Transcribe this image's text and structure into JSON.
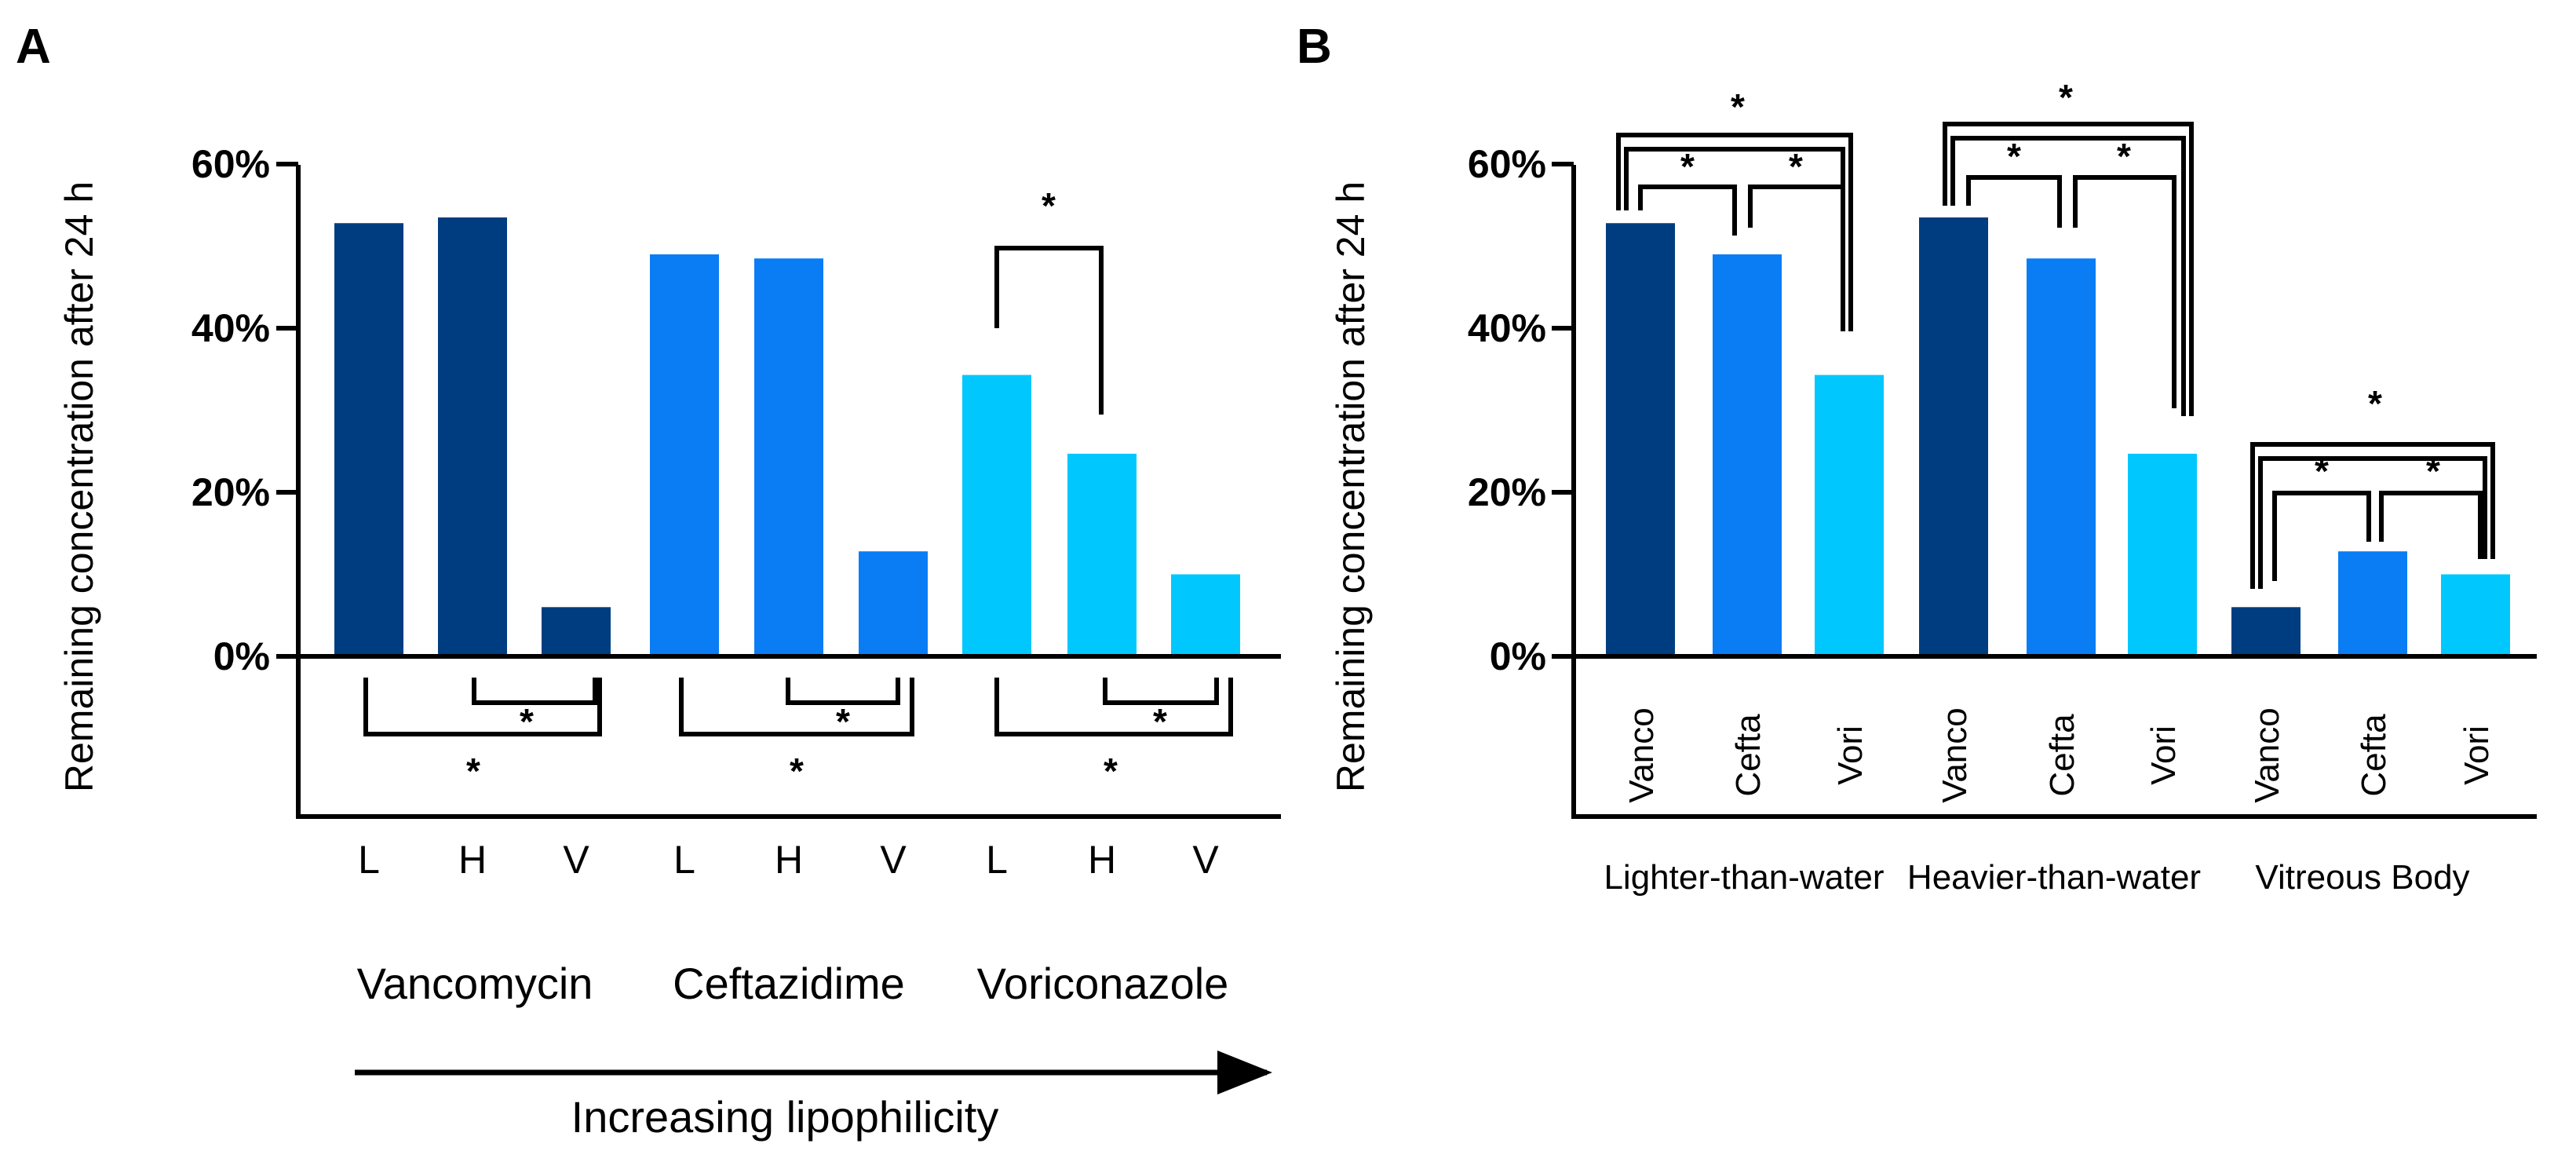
{
  "colors": {
    "vancomycin": "#003d80",
    "ceftazidime": "#0a7df5",
    "voriconazole": "#00c8ff",
    "ink": "#000000"
  },
  "panel_a": {
    "letter": "A",
    "arrow_label": "Increasing lipophilicity",
    "group_labels": [
      "Vancomycin",
      "Ceftazidime",
      "Voriconazole"
    ]
  },
  "panel_b": {
    "letter": "B",
    "group_labels": [
      "Lighter-than-water",
      "Heavier-than-water",
      "Vitreous Body"
    ]
  },
  "sig_marker": "*",
  "chart_data": [
    {
      "type": "bar",
      "title": "",
      "ylabel": "Remaining concentration after 24 h",
      "ylim": [
        0,
        60
      ],
      "yticks": [
        "0%",
        "20%",
        "40%",
        "60%"
      ],
      "categories": [
        "L",
        "H",
        "V",
        "L",
        "H",
        "V",
        "L",
        "H",
        "V"
      ],
      "groups": [
        "Vancomycin",
        "Ceftazidime",
        "Voriconazole"
      ],
      "series": [
        {
          "values": [
            52.8,
            53.5,
            6.0,
            49.0,
            48.5,
            12.8,
            34.3,
            24.7,
            10.0
          ]
        }
      ],
      "bar_colors": [
        "vancomycin",
        "vancomycin",
        "vancomycin",
        "ceftazidime",
        "ceftazidime",
        "ceftazidime",
        "voriconazole",
        "voriconazole",
        "voriconazole"
      ],
      "significance": [
        {
          "from": 0,
          "to": 2,
          "label": "*"
        },
        {
          "from": 1,
          "to": 2,
          "label": "*"
        },
        {
          "from": 3,
          "to": 5,
          "label": "*"
        },
        {
          "from": 4,
          "to": 5,
          "label": "*"
        },
        {
          "from": 6,
          "to": 8,
          "label": "*"
        },
        {
          "from": 7,
          "to": 8,
          "label": "*"
        },
        {
          "from": 6,
          "to": 7,
          "label": "*"
        }
      ]
    },
    {
      "type": "bar",
      "title": "",
      "ylabel": "Remaining concentration after 24 h",
      "ylim": [
        0,
        60
      ],
      "yticks": [
        "0%",
        "20%",
        "40%",
        "60%"
      ],
      "categories": [
        "Vanco",
        "Cefta",
        "Vori",
        "Vanco",
        "Cefta",
        "Vori",
        "Vanco",
        "Cefta",
        "Vori"
      ],
      "groups": [
        "Lighter-than-water",
        "Heavier-than-water",
        "Vitreous Body"
      ],
      "series": [
        {
          "values": [
            52.8,
            49.0,
            34.3,
            53.5,
            48.5,
            24.7,
            6.0,
            12.8,
            10.0
          ]
        }
      ],
      "bar_colors": [
        "vancomycin",
        "ceftazidime",
        "voriconazole",
        "vancomycin",
        "ceftazidime",
        "voriconazole",
        "vancomycin",
        "ceftazidime",
        "voriconazole"
      ],
      "significance": [
        {
          "from": 0,
          "to": 2,
          "label": "*"
        },
        {
          "from": 0,
          "to": 1,
          "label": "*"
        },
        {
          "from": 1,
          "to": 2,
          "label": "*"
        },
        {
          "from": 3,
          "to": 5,
          "label": "*"
        },
        {
          "from": 3,
          "to": 4,
          "label": "*"
        },
        {
          "from": 4,
          "to": 5,
          "label": "*"
        },
        {
          "from": 6,
          "to": 8,
          "label": "*"
        },
        {
          "from": 6,
          "to": 7,
          "label": "*"
        },
        {
          "from": 7,
          "to": 8,
          "label": "*"
        }
      ]
    }
  ]
}
